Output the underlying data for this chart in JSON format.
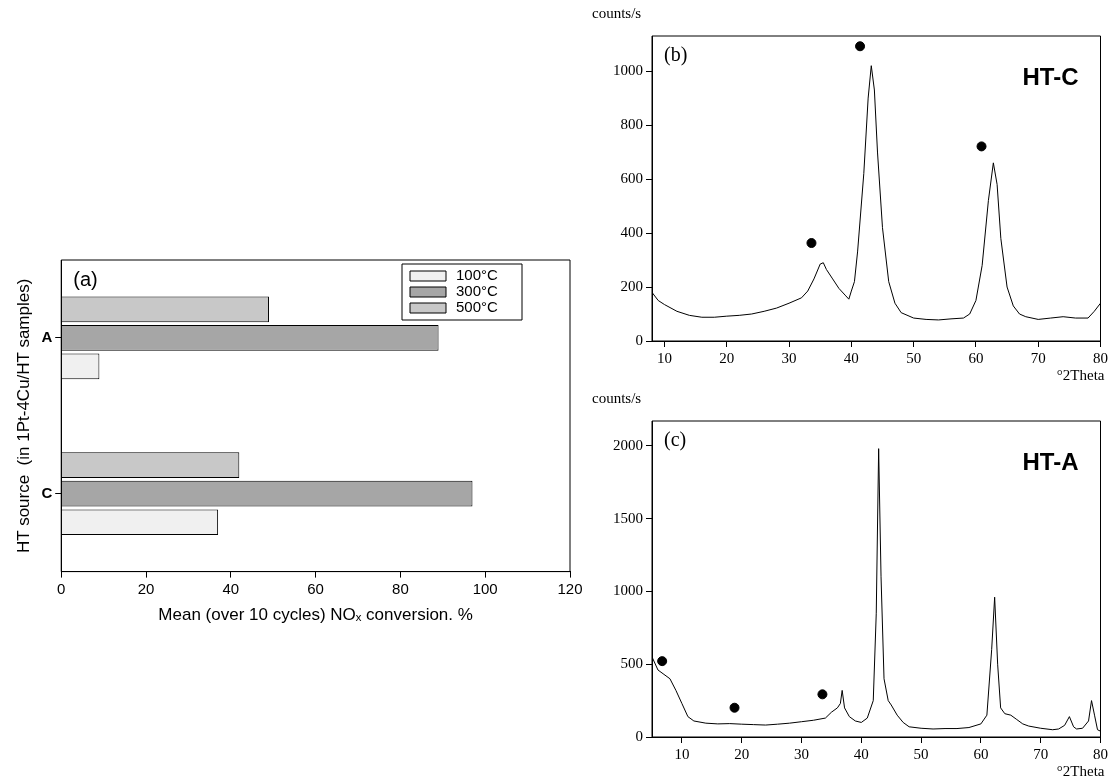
{
  "chart_data": [
    {
      "type": "bar",
      "orientation": "horizontal",
      "annotations": [
        "(a)"
      ],
      "ylabel": "HT source  (in 1Pt-4Cu/HT samples)",
      "xlabel": "Mean (over 10 cycles) NOₓ conversion. %",
      "categories": [
        "A",
        "C"
      ],
      "series": [
        {
          "name": "100°C",
          "color": "#f0f0f0",
          "values": [
            9,
            37
          ]
        },
        {
          "name": "300°C",
          "color": "#a6a6a6",
          "values": [
            89,
            97
          ]
        },
        {
          "name": "500°C",
          "color": "#c8c8c8",
          "values": [
            49,
            42
          ]
        }
      ],
      "xlim": [
        0,
        120
      ],
      "xticks": [
        0,
        20,
        40,
        60,
        80,
        100,
        120
      ],
      "legend": "top right",
      "grid": false
    },
    {
      "type": "line",
      "annotations": [
        "(b)",
        "HT-C"
      ],
      "xlabel": "°2Theta",
      "ylabel": "counts/s",
      "xlim": [
        8,
        80
      ],
      "xticks": [
        10,
        20,
        30,
        40,
        50,
        60,
        70,
        80
      ],
      "ylim": [
        0,
        1130
      ],
      "yticks": [
        0,
        200,
        400,
        600,
        800,
        1000
      ],
      "grid": false,
      "legend": false,
      "series": [
        {
          "color": "#000000",
          "x": [
            8,
            9,
            10,
            12,
            14,
            16,
            18,
            20,
            22,
            24,
            26,
            28,
            30,
            32,
            33,
            34,
            35,
            35.5,
            36,
            37,
            38,
            39,
            39.6,
            40,
            40.5,
            41,
            42,
            42.7,
            43.2,
            43.7,
            44.2,
            45,
            46,
            47,
            48,
            50,
            52,
            54,
            56,
            58,
            59,
            60,
            61,
            62,
            62.8,
            63.4,
            64,
            65,
            66,
            67,
            68,
            70,
            72,
            74,
            76,
            78,
            79,
            80
          ],
          "values": [
            180,
            150,
            135,
            110,
            95,
            88,
            88,
            92,
            95,
            100,
            110,
            122,
            140,
            160,
            185,
            230,
            285,
            290,
            265,
            230,
            195,
            170,
            155,
            185,
            220,
            330,
            620,
            900,
            1020,
            930,
            700,
            420,
            220,
            140,
            105,
            85,
            80,
            78,
            82,
            85,
            100,
            150,
            280,
            520,
            660,
            580,
            380,
            200,
            130,
            100,
            90,
            80,
            85,
            90,
            85,
            85,
            110,
            140
          ]
        },
        {
          "type": "scatter",
          "color": "#000000",
          "x": [
            33.6,
            41.4,
            60.9
          ],
          "values": [
            363,
            1092,
            721
          ]
        }
      ]
    },
    {
      "type": "line",
      "annotations": [
        "(c)",
        "HT-A"
      ],
      "xlabel": "°2Theta",
      "ylabel": "counts/s",
      "xlim": [
        5,
        80
      ],
      "xticks": [
        10,
        20,
        30,
        40,
        50,
        60,
        70,
        80
      ],
      "ylim": [
        0,
        2170
      ],
      "yticks": [
        0,
        500,
        1000,
        1500,
        2000
      ],
      "grid": false,
      "legend": false,
      "series": [
        {
          "color": "#000000",
          "x": [
            5,
            6,
            7,
            8,
            9,
            10,
            11,
            12,
            14,
            16,
            18,
            20,
            22,
            24,
            26,
            28,
            30,
            32,
            34,
            35,
            36,
            36.5,
            36.8,
            37.2,
            38,
            39,
            40,
            41,
            42,
            42.5,
            42.9,
            43.3,
            43.8,
            44.5,
            45,
            46,
            47,
            48,
            50,
            52,
            54,
            56,
            58,
            60,
            61,
            61.8,
            62.3,
            62.8,
            63.3,
            64,
            65,
            66,
            67,
            68,
            70,
            72,
            73,
            74,
            74.8,
            75.5,
            76,
            77,
            78,
            78.5,
            79,
            79.5,
            80
          ],
          "values": [
            550,
            460,
            430,
            400,
            320,
            230,
            140,
            110,
            95,
            90,
            92,
            88,
            85,
            82,
            88,
            95,
            105,
            115,
            130,
            170,
            200,
            230,
            320,
            200,
            140,
            110,
            100,
            130,
            250,
            850,
            1980,
            1100,
            400,
            250,
            220,
            150,
            100,
            70,
            60,
            55,
            58,
            58,
            65,
            90,
            150,
            600,
            960,
            500,
            200,
            160,
            150,
            120,
            90,
            75,
            60,
            50,
            55,
            80,
            140,
            70,
            55,
            60,
            110,
            250,
            150,
            50,
            40
          ]
        },
        {
          "type": "scatter",
          "color": "#000000",
          "x": [
            6.7,
            18.8,
            33.5
          ],
          "values": [
            521,
            201,
            293
          ]
        }
      ]
    }
  ]
}
